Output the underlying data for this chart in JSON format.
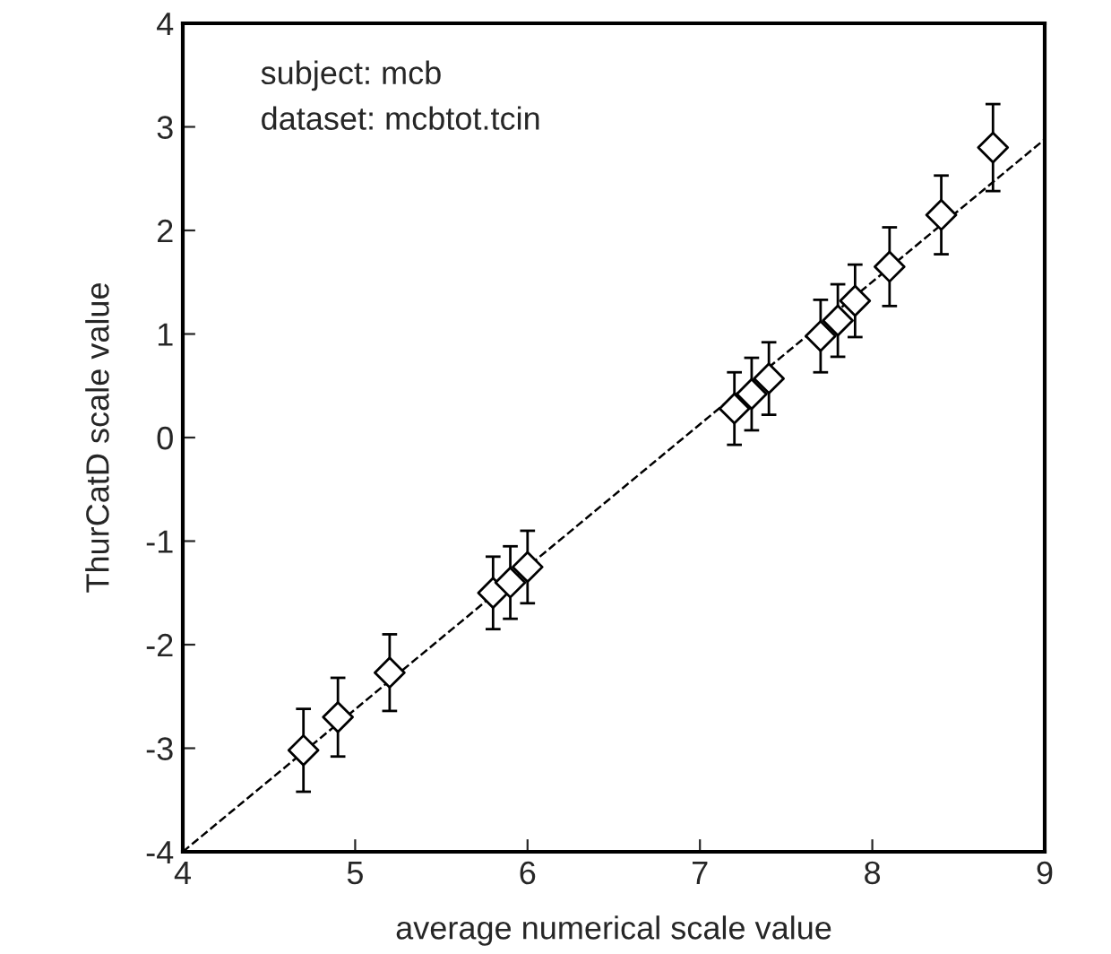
{
  "chart_data": {
    "type": "scatter",
    "xlabel": "average numerical scale value",
    "ylabel": "ThurCatD scale value",
    "annotations": [
      "subject: mcb",
      "dataset: mcbtot.tcin"
    ],
    "xlim": [
      4,
      9
    ],
    "ylim": [
      -4,
      4
    ],
    "xticks": [
      4,
      5,
      6,
      7,
      8,
      9
    ],
    "yticks": [
      -4,
      -3,
      -2,
      -1,
      0,
      1,
      2,
      3,
      4
    ],
    "grid": false,
    "legend": false,
    "series": [
      {
        "marker": "diamond",
        "color": "#000000",
        "x": [
          4.7,
          4.9,
          5.2,
          5.8,
          5.9,
          6.0,
          7.2,
          7.3,
          7.4,
          7.7,
          7.8,
          7.9,
          8.1,
          8.4,
          8.7
        ],
        "values": [
          -3.02,
          -2.7,
          -2.27,
          -1.5,
          -1.4,
          -1.25,
          0.28,
          0.42,
          0.57,
          0.98,
          1.13,
          1.32,
          1.65,
          2.15,
          2.8
        ],
        "errors": [
          0.4,
          0.38,
          0.37,
          0.35,
          0.35,
          0.35,
          0.35,
          0.35,
          0.35,
          0.35,
          0.35,
          0.35,
          0.38,
          0.38,
          0.42
        ]
      },
      {
        "type": "line",
        "color": "#000000",
        "line_style": "dashed",
        "x": [
          4,
          9
        ],
        "values": [
          -4,
          2.88
        ]
      }
    ]
  }
}
